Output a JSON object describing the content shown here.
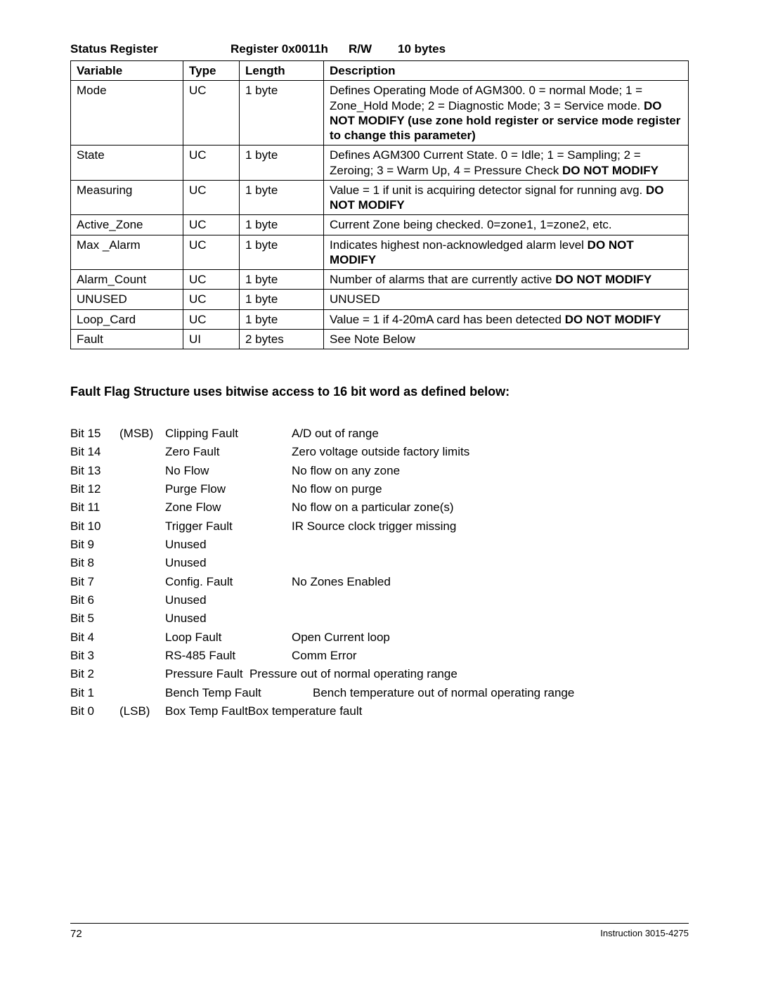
{
  "header": {
    "title": "Status Register",
    "register": "Register 0x0011h",
    "rw": "R/W",
    "bytes": "10 bytes"
  },
  "table": {
    "columns": [
      "Variable",
      "Type",
      "Length",
      "Description"
    ],
    "rows": [
      {
        "variable": "Mode",
        "type": "UC",
        "length": "1 byte",
        "desc_plain": "Defines Operating Mode of AGM300.  0 = normal Mode; 1 = Zone_Hold Mode; 2 = Diagnostic Mode;   3 = Service mode.  ",
        "desc_bold": "DO NOT MODIFY (use zone hold register or service mode register to change this parameter)"
      },
      {
        "variable": "State",
        "type": "UC",
        "length": "1 byte",
        "desc_plain": "Defines AGM300 Current State.  0 = Idle; 1 = Sampling; 2 = Zeroing; 3 = Warm Up, 4 = Pressure Check  ",
        "desc_bold": "DO NOT MODIFY"
      },
      {
        "variable": "Measuring",
        "type": "UC",
        "length": "1 byte",
        "desc_plain": "Value = 1 if unit is acquiring detector signal for running avg.  ",
        "desc_bold": "DO NOT MODIFY"
      },
      {
        "variable": "Active_Zone",
        "type": "UC",
        "length": "1 byte",
        "desc_plain": "Current Zone being checked. 0=zone1, 1=zone2, etc.",
        "desc_bold": ""
      },
      {
        "variable": "Max _Alarm",
        "type": "UC",
        "length": "1 byte",
        "desc_plain": "Indicates highest non-acknowledged alarm level  ",
        "desc_bold": "DO NOT MODIFY"
      },
      {
        "variable": "Alarm_Count",
        "type": "UC",
        "length": "1 byte",
        "desc_plain": "Number of alarms that are currently active  ",
        "desc_bold": "DO NOT MODIFY"
      },
      {
        "variable": "UNUSED",
        "type": "UC",
        "length": "1 byte",
        "desc_plain": "UNUSED",
        "desc_bold": ""
      },
      {
        "variable": "Loop_Card",
        "type": "UC",
        "length": "1 byte",
        "desc_plain": "Value = 1 if 4-20mA card has been detected ",
        "desc_bold": "DO NOT MODIFY"
      },
      {
        "variable": "Fault",
        "type": "UI",
        "length": "2 bytes",
        "desc_plain": "See Note Below",
        "desc_bold": ""
      }
    ]
  },
  "fault_section_title": "Fault Flag Structure uses bitwise access to 16 bit word as defined below:",
  "bits": [
    {
      "bit": "Bit 15",
      "msb": "(MSB)",
      "name": "Clipping Fault",
      "desc": "A/D out of range"
    },
    {
      "bit": "Bit 14",
      "msb": "",
      "name": "Zero Fault",
      "desc": "Zero voltage outside factory limits"
    },
    {
      "bit": "Bit 13",
      "msb": "",
      "name": "No Flow",
      "desc": "No flow on any zone"
    },
    {
      "bit": "Bit 12",
      "msb": "",
      "name": "Purge Flow",
      "desc": "No flow on purge"
    },
    {
      "bit": "Bit 11",
      "msb": "",
      "name": "Zone Flow",
      "desc": "No flow on a particular zone(s)"
    },
    {
      "bit": "Bit 10",
      "msb": "",
      "name": "Trigger Fault",
      "desc": "IR Source clock trigger missing"
    },
    {
      "bit": "Bit 9",
      "msb": "",
      "name": "Unused",
      "desc": ""
    },
    {
      "bit": "Bit 8",
      "msb": "",
      "name": "Unused",
      "desc": ""
    },
    {
      "bit": "Bit 7",
      "msb": "",
      "name": "Config. Fault",
      "desc": "No Zones Enabled"
    },
    {
      "bit": "Bit 6",
      "msb": "",
      "name": "Unused",
      "desc": ""
    },
    {
      "bit": "Bit 5",
      "msb": "",
      "name": "Unused",
      "desc": ""
    },
    {
      "bit": "Bit 4",
      "msb": "",
      "name": "Loop Fault",
      "desc": "Open Current loop"
    },
    {
      "bit": "Bit 3",
      "msb": "",
      "name": "RS-485 Fault",
      "desc": "Comm Error"
    },
    {
      "bit": "Bit 2",
      "msb": "",
      "name": "Pressure Fault",
      "desc": "Pressure out of normal operating range",
      "name_wide": true
    },
    {
      "bit": "Bit 1",
      "msb": "",
      "name": "Bench Temp Fault",
      "desc": "Bench temperature out of normal operating range",
      "name_wide2": true
    },
    {
      "bit": "Bit 0",
      "msb": "(LSB)",
      "name": "Box Temp Fault",
      "desc": "Box temperature fault",
      "name_wide": true,
      "tight": true
    }
  ],
  "footer": {
    "page": "72",
    "instruction": "Instruction 3015-4275"
  }
}
